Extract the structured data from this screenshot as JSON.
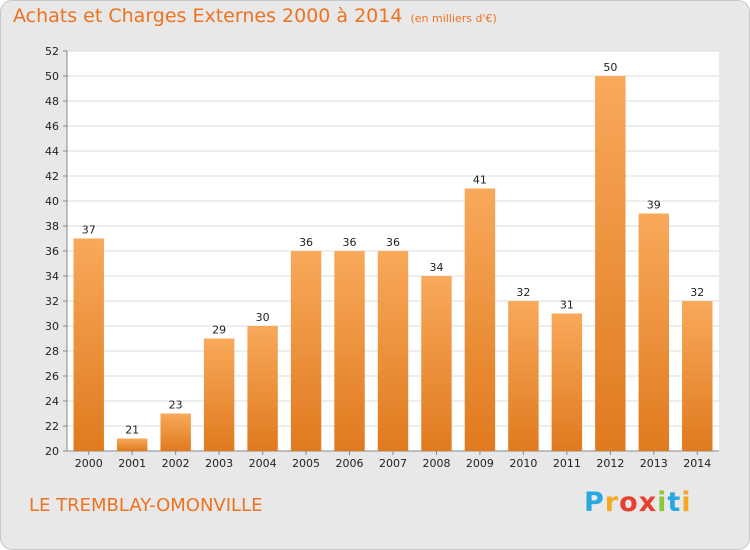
{
  "title": "Achats et Charges Externes 2000 à 2014",
  "subtitle": "(en milliers d'€)",
  "commune": "LE TREMBLAY-OMONVILLE",
  "logo": {
    "letters": [
      "P",
      "r",
      "o",
      "x",
      "i",
      "t",
      "i"
    ],
    "colors": [
      "#29a8e0",
      "#f7a823",
      "#e8402f",
      "#e8402f",
      "#8cc63f",
      "#29a8e0",
      "#f7a823"
    ]
  },
  "colors": {
    "accent": "#ee7220",
    "bar_top": "#f8a95a",
    "bar_bottom": "#e07a1f",
    "background": "#e8e8e8",
    "plot_background": "#ffffff",
    "grid": "#dcdcdc"
  },
  "chart_data": {
    "type": "bar",
    "title": "Achats et Charges Externes 2000 à 2014",
    "subtitle": "(en milliers d'€)",
    "categories": [
      "2000",
      "2001",
      "2002",
      "2003",
      "2004",
      "2005",
      "2006",
      "2007",
      "2008",
      "2009",
      "2010",
      "2011",
      "2012",
      "2013",
      "2014"
    ],
    "values": [
      37,
      21,
      23,
      29,
      30,
      36,
      36,
      36,
      34,
      41,
      32,
      31,
      50,
      39,
      32
    ],
    "ylim": [
      20,
      52
    ],
    "yticks": [
      20,
      22,
      24,
      26,
      28,
      30,
      32,
      34,
      36,
      38,
      40,
      42,
      44,
      46,
      48,
      50,
      52
    ],
    "grid": true,
    "legend": "none"
  }
}
